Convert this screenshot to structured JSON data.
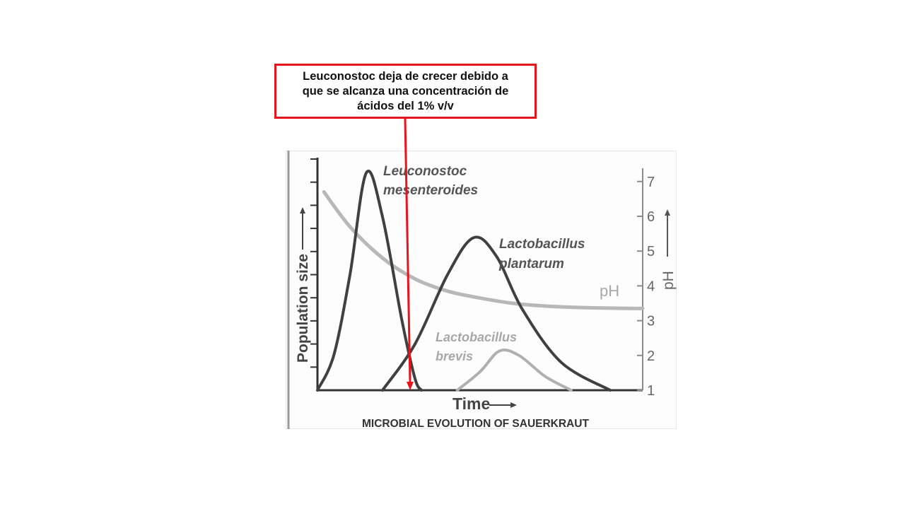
{
  "annotation": {
    "lines": [
      "Leuconostoc deja de crecer debido a",
      "que se alcanza una concentración de",
      "ácidos del 1% v/v"
    ],
    "border_color": "#e8141b",
    "arrow_color": "#e8141b",
    "arrow_target": "Leuconostoc mesenteroides population reaches zero"
  },
  "chart_data": {
    "type": "line",
    "title": "MICROBIAL EVOLUTION OF SAUERKRAUT",
    "xlabel": "Time",
    "ylabel": "Population size",
    "y2label": "pH",
    "y2ticks": [
      1,
      2,
      3,
      4,
      5,
      6,
      7
    ],
    "y2lim": [
      1,
      7.3
    ],
    "ylim": [
      0,
      10
    ],
    "xlim": [
      0,
      10
    ],
    "y_tick_count": 10,
    "grid": false,
    "series": [
      {
        "name": "Leuconostoc mesenteroides",
        "label_lines": [
          "Leuconostoc",
          "mesenteroides"
        ],
        "axis": "population",
        "color": "#404040",
        "points": [
          [
            0,
            0
          ],
          [
            0.5,
            1.5
          ],
          [
            1.0,
            5.0
          ],
          [
            1.5,
            9.4
          ],
          [
            2.0,
            7.5
          ],
          [
            2.6,
            3.0
          ],
          [
            3.0,
            0.5
          ],
          [
            3.2,
            0
          ]
        ]
      },
      {
        "name": "Lactobacillus plantarum",
        "label_lines": [
          "Lactobacillus",
          "plantarum"
        ],
        "axis": "population",
        "color": "#404040",
        "points": [
          [
            2.0,
            0
          ],
          [
            3.0,
            2.0
          ],
          [
            4.0,
            5.0
          ],
          [
            4.8,
            6.6
          ],
          [
            5.5,
            5.8
          ],
          [
            6.3,
            3.5
          ],
          [
            7.5,
            1.2
          ],
          [
            9.0,
            0
          ]
        ]
      },
      {
        "name": "Lactobacillus brevis",
        "label_lines": [
          "Lactobacillus",
          "brevis"
        ],
        "axis": "population",
        "color": "#b0b0b0",
        "points": [
          [
            4.3,
            0
          ],
          [
            5.0,
            0.8
          ],
          [
            5.6,
            1.7
          ],
          [
            6.2,
            1.5
          ],
          [
            7.0,
            0.6
          ],
          [
            7.8,
            0
          ]
        ]
      },
      {
        "name": "pH",
        "label_lines": [
          "pH"
        ],
        "axis": "pH",
        "color": "#b8b8b8",
        "points": [
          [
            0.2,
            6.7
          ],
          [
            1.0,
            5.7
          ],
          [
            2.0,
            4.8
          ],
          [
            3.0,
            4.2
          ],
          [
            4.0,
            3.85
          ],
          [
            5.0,
            3.65
          ],
          [
            6.0,
            3.5
          ],
          [
            7.0,
            3.42
          ],
          [
            8.0,
            3.38
          ],
          [
            9.0,
            3.36
          ],
          [
            10.0,
            3.35
          ]
        ]
      }
    ]
  }
}
